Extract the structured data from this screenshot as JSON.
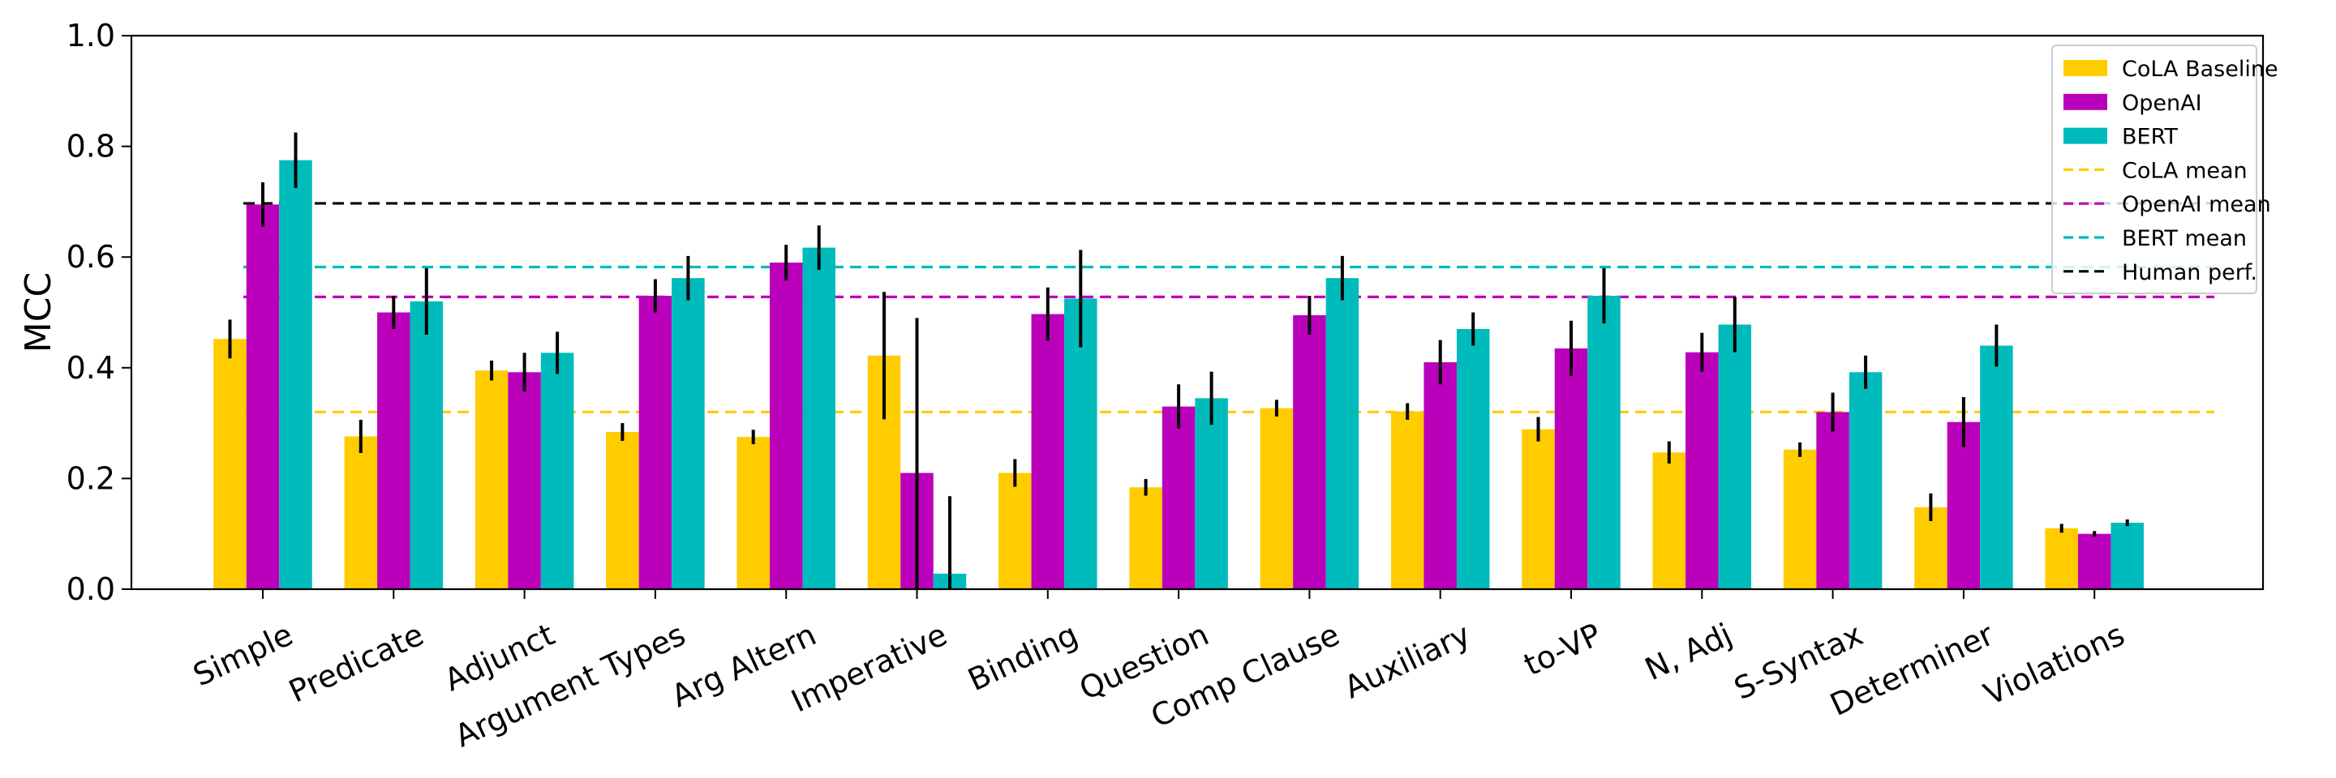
{
  "chart_data": {
    "type": "bar",
    "ylabel": "MCC",
    "xlabel": "",
    "title": "",
    "ylim": [
      0.0,
      1.0
    ],
    "yticks": [
      "0.0",
      "0.2",
      "0.4",
      "0.6",
      "0.8",
      "1.0"
    ],
    "grid": false,
    "legend_position": "top-right",
    "categories": [
      "Simple",
      "Predicate",
      "Adjunct",
      "Argument Types",
      "Arg Altern",
      "Imperative",
      "Binding",
      "Question",
      "Comp Clause",
      "Auxiliary",
      "to-VP",
      "N, Adj",
      "S-Syntax",
      "Determiner",
      "Violations"
    ],
    "series": [
      {
        "name": "CoLA Baseline",
        "color": "#ffcc00",
        "values": [
          0.452,
          0.276,
          0.395,
          0.284,
          0.275,
          0.422,
          0.21,
          0.184,
          0.327,
          0.321,
          0.289,
          0.247,
          0.252,
          0.148,
          0.11
        ],
        "err": [
          0.035,
          0.03,
          0.018,
          0.016,
          0.013,
          0.115,
          0.025,
          0.015,
          0.015,
          0.015,
          0.022,
          0.02,
          0.013,
          0.025,
          0.008
        ]
      },
      {
        "name": "OpenAI",
        "color": "#bb00bb",
        "values": [
          0.695,
          0.5,
          0.392,
          0.53,
          0.59,
          0.21,
          0.497,
          0.33,
          0.495,
          0.41,
          0.435,
          0.428,
          0.32,
          0.302,
          0.1
        ],
        "err": [
          0.04,
          0.03,
          0.035,
          0.03,
          0.032,
          0.28,
          0.048,
          0.04,
          0.035,
          0.04,
          0.05,
          0.035,
          0.035,
          0.045,
          0.005
        ]
      },
      {
        "name": "BERT",
        "color": "#00bbbb",
        "values": [
          0.775,
          0.52,
          0.427,
          0.562,
          0.617,
          0.028,
          0.525,
          0.345,
          0.562,
          0.47,
          0.53,
          0.478,
          0.392,
          0.44,
          0.12
        ],
        "err": [
          0.05,
          0.06,
          0.038,
          0.04,
          0.04,
          0.14,
          0.088,
          0.048,
          0.04,
          0.03,
          0.05,
          0.05,
          0.03,
          0.038,
          0.006
        ]
      }
    ],
    "reference_lines": [
      {
        "name": "CoLA mean",
        "value": 0.32,
        "color": "#ffcc00"
      },
      {
        "name": "OpenAI mean",
        "value": 0.528,
        "color": "#bb00bb"
      },
      {
        "name": "BERT mean",
        "value": 0.582,
        "color": "#00bbbb"
      },
      {
        "name": "Human perf.",
        "value": 0.697,
        "color": "#000000"
      }
    ]
  }
}
